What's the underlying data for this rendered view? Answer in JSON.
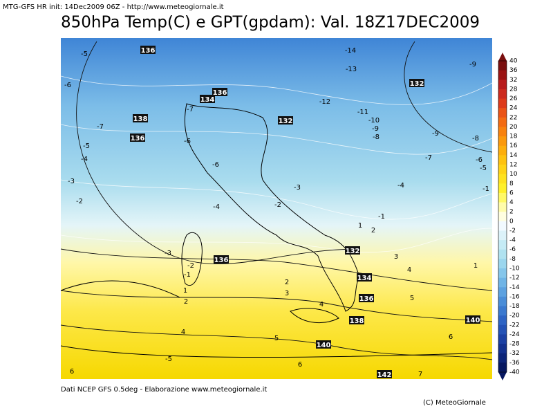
{
  "header": {
    "init": "MTG-GFS HR init: 14Dec2009 06Z - http://www.meteogiornale.it",
    "title": "850hPa Temp(C) e GPT(gpdam): Val. 18Z17DEC2009"
  },
  "footer": {
    "source": "Dati NCEP GFS 0.5deg - Elaborazione www.meteogiornale.it",
    "credit": "(C) MeteoGiornale"
  },
  "colorbar": {
    "labels": [
      40,
      36,
      32,
      28,
      26,
      24,
      22,
      20,
      18,
      16,
      14,
      12,
      10,
      8,
      6,
      4,
      2,
      0,
      -2,
      -4,
      -6,
      -8,
      -10,
      -12,
      -14,
      -16,
      -18,
      -20,
      -22,
      -24,
      -28,
      -32,
      -36,
      -40
    ],
    "colors": [
      "#7a0f0f",
      "#9b1414",
      "#b81c1c",
      "#cc2a1e",
      "#dd3a1a",
      "#ea5316",
      "#f36b12",
      "#f8820e",
      "#fb990c",
      "#fdae0c",
      "#fec210",
      "#ffd317",
      "#ffe21f",
      "#fff02a",
      "#fff966",
      "#fffcaa",
      "#fffee0",
      "#f2faff",
      "#dcf2f9",
      "#c5ebf5",
      "#b0e2f0",
      "#9bd6ee",
      "#85c6eb",
      "#6fb4e6",
      "#5ca1e0",
      "#4a8dd8",
      "#3b79cf",
      "#2e64c4",
      "#2452b5",
      "#1b40a3",
      "#13318e",
      "#0c2478",
      "#061760"
    ]
  },
  "map": {
    "temperature_labels": [
      -5,
      -6,
      -7,
      -5,
      -4,
      -3,
      -2,
      -14,
      -13,
      -9,
      -12,
      -11,
      -10,
      -9,
      -8,
      -9,
      -8,
      -7,
      -6,
      -5,
      -4,
      -1,
      -6,
      -6,
      -4,
      -3,
      -2,
      -7,
      -3,
      -2,
      -1,
      1,
      2,
      1,
      2,
      3,
      4,
      1,
      2,
      3,
      4,
      5,
      4,
      5,
      6,
      -5,
      6,
      6,
      7,
      -1
    ],
    "height_labels": [
      136,
      132,
      134,
      136,
      138,
      136,
      132,
      132,
      136,
      134,
      136,
      138,
      140,
      140,
      142
    ]
  }
}
